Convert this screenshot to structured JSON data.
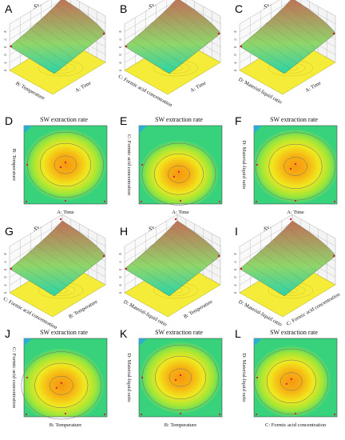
{
  "colors": {
    "surface_low": "#2bd3a8",
    "surface_mid": "#8fd66a",
    "surface_high": "#c07056",
    "floor": "#f4ec38",
    "contour_line": "#6e6e6e",
    "design_point": "#d2183c",
    "grid_line": "#9a9a9a"
  },
  "chart_data": [
    {
      "id": "A",
      "panel_letter": "A",
      "type": "surface3d",
      "title": "SW extraction rate",
      "axis_left": "B: Temperature",
      "axis_right": "A: Time"
    },
    {
      "id": "B",
      "panel_letter": "B",
      "type": "surface3d",
      "title": "SW extraction rate",
      "axis_left": "C: Formic acid concentration",
      "axis_right": "A: Time"
    },
    {
      "id": "C",
      "panel_letter": "C",
      "type": "surface3d",
      "title": "SW extraction rate",
      "axis_left": "D: Material-liquid ratio",
      "axis_right": "A: Time"
    },
    {
      "id": "D",
      "panel_letter": "D",
      "type": "contour",
      "title": "SW extraction rate",
      "xlabel": "A: Time",
      "ylabel": "B: Temperature",
      "center": [
        0.5,
        0.5
      ],
      "spread": [
        0.62,
        0.58
      ]
    },
    {
      "id": "E",
      "panel_letter": "E",
      "type": "contour",
      "title": "SW extraction rate",
      "xlabel": "A: Time",
      "ylabel": "C: Formic acid concentration",
      "center": [
        0.48,
        0.62
      ],
      "spread": [
        0.6,
        0.55
      ]
    },
    {
      "id": "F",
      "panel_letter": "F",
      "type": "contour",
      "title": "SW extraction rate",
      "xlabel": "A: Time",
      "ylabel": "D: Material-liquid ratio",
      "center": [
        0.5,
        0.52
      ],
      "spread": [
        0.65,
        0.6
      ]
    },
    {
      "id": "G",
      "panel_letter": "G",
      "type": "surface3d",
      "title": "SW extraction rate",
      "axis_left": "C: Formic acid concentration",
      "axis_right": "B: Temperature"
    },
    {
      "id": "H",
      "panel_letter": "H",
      "type": "surface3d",
      "title": "SW extraction rate",
      "axis_left": "D: Material-liquid ratio",
      "axis_right": "B: Temperature"
    },
    {
      "id": "I",
      "panel_letter": "I",
      "type": "surface3d",
      "title": "SW extraction rate",
      "axis_left": "D: Material-liquid ratio",
      "axis_right": "C: Formic acid concentration"
    },
    {
      "id": "J",
      "panel_letter": "J",
      "type": "contour",
      "title": "SW extraction rate",
      "xlabel": "B: Temperature",
      "ylabel": "C: Formic acid concentration",
      "center": [
        0.45,
        0.6
      ],
      "spread": [
        0.65,
        0.6
      ]
    },
    {
      "id": "K",
      "panel_letter": "K",
      "type": "contour",
      "title": "SW extraction rate",
      "xlabel": "B: Temperature",
      "ylabel": "D: Material-liquid ratio",
      "center": [
        0.5,
        0.5
      ],
      "spread": [
        0.62,
        0.58
      ]
    },
    {
      "id": "L",
      "panel_letter": "L",
      "type": "contour",
      "title": "SW extraction rate",
      "xlabel": "C: Formic acid concentration",
      "ylabel": "D: Material-liquid ratio",
      "center": [
        0.45,
        0.55
      ],
      "spread": [
        0.6,
        0.58
      ]
    }
  ]
}
